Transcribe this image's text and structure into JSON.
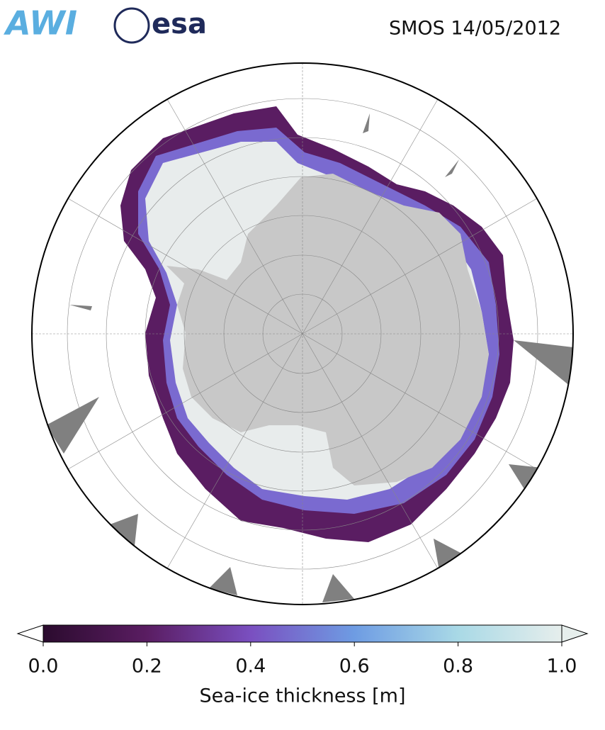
{
  "header": {
    "logos": [
      "AWI",
      "esa"
    ],
    "title": "SMOS 14/05/2012"
  },
  "colorbar": {
    "label": "Sea-ice thickness [m]",
    "lim": [
      0,
      1
    ],
    "ticks": [
      {
        "value": 0,
        "label": "0.0"
      },
      {
        "value": 0.2,
        "label": "0.2"
      },
      {
        "value": 0.4,
        "label": "0.4"
      },
      {
        "value": 0.6,
        "label": "0.6"
      },
      {
        "value": 0.8,
        "label": "0.8"
      },
      {
        "value": 1,
        "label": "1.0"
      }
    ],
    "colors": [
      "#2b0b2e",
      "#5a1d62",
      "#7a4fc0",
      "#6e9ce3",
      "#a9d9e6",
      "#e6eeec"
    ]
  }
}
